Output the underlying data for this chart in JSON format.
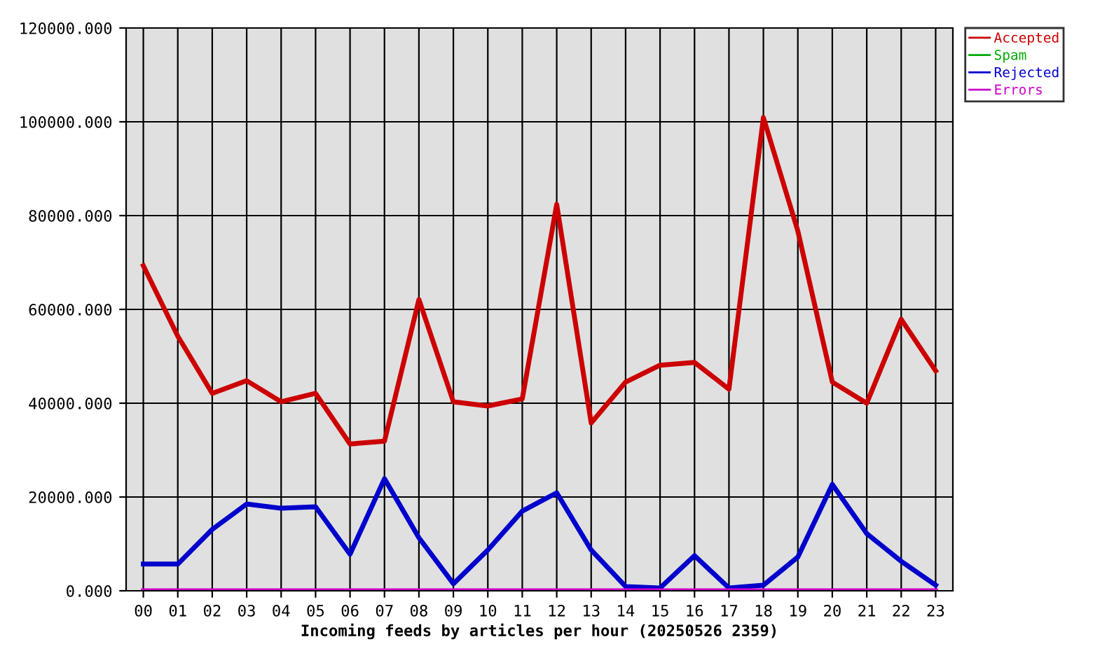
{
  "chart_data": {
    "type": "line",
    "xlabel": "Incoming feeds by articles per hour (20250526 2359)",
    "categories": [
      "00",
      "01",
      "02",
      "03",
      "04",
      "05",
      "06",
      "07",
      "08",
      "09",
      "10",
      "11",
      "12",
      "13",
      "14",
      "15",
      "16",
      "17",
      "18",
      "19",
      "20",
      "21",
      "22",
      "23"
    ],
    "series": [
      {
        "name": "Accepted",
        "color": "#cc0000",
        "values": [
          69300,
          54300,
          42100,
          44800,
          40300,
          42100,
          31300,
          31900,
          62100,
          40300,
          39400,
          40900,
          82400,
          35800,
          44500,
          48100,
          48700,
          43000,
          100900,
          76700,
          44500,
          40000,
          57900,
          46900
        ]
      },
      {
        "name": "Spam",
        "color": "#00aa00",
        "values": [
          null,
          null,
          null,
          null,
          null,
          null,
          null,
          null,
          null,
          null,
          null,
          null,
          null,
          null,
          null,
          null,
          null,
          null,
          null,
          null,
          null,
          null,
          null,
          null
        ]
      },
      {
        "name": "Rejected",
        "color": "#0000cc",
        "values": [
          5700,
          5700,
          13100,
          18500,
          17600,
          17900,
          7800,
          23900,
          11300,
          1500,
          8700,
          17000,
          20900,
          8700,
          900,
          600,
          7500,
          600,
          1200,
          7200,
          22700,
          12200,
          6300,
          1200
        ]
      },
      {
        "name": "Errors",
        "color": "#cc00cc",
        "values": [
          0,
          0,
          0,
          0,
          0,
          0,
          0,
          0,
          0,
          0,
          0,
          0,
          0,
          0,
          0,
          0,
          0,
          0,
          0,
          0,
          0,
          0,
          0,
          0
        ]
      }
    ],
    "ylim": [
      0,
      120000
    ],
    "yticks": [
      {
        "value": 0,
        "label": "0.000"
      },
      {
        "value": 20000,
        "label": "20000.000"
      },
      {
        "value": 40000,
        "label": "40000.000"
      },
      {
        "value": 60000,
        "label": "60000.000"
      },
      {
        "value": 80000,
        "label": "80000.000"
      },
      {
        "value": 100000,
        "label": "100000.000"
      },
      {
        "value": 120000,
        "label": "120000.000"
      }
    ],
    "grid": true,
    "legend": "top right",
    "marker": "none",
    "line_style": "solid"
  }
}
